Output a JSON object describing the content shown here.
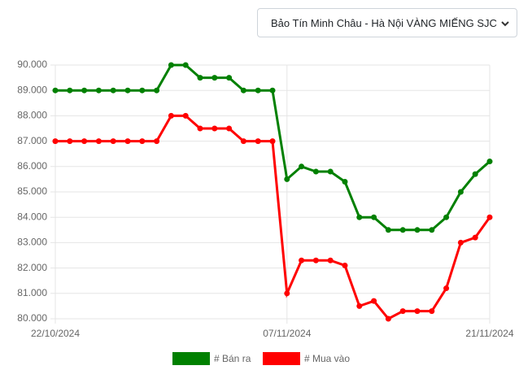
{
  "dropdown": {
    "selected": "Bảo Tín Minh Châu - Hà Nội VÀNG MIẾNG SJC"
  },
  "chart_data": {
    "type": "line",
    "categories": [
      "22/10/2024",
      null,
      null,
      null,
      null,
      null,
      null,
      null,
      null,
      null,
      null,
      null,
      null,
      null,
      null,
      null,
      "07/11/2024",
      null,
      null,
      null,
      null,
      null,
      null,
      null,
      null,
      null,
      null,
      null,
      null,
      null,
      "21/11/2024"
    ],
    "series": [
      {
        "name": "# Bán ra",
        "color": "#008000",
        "values": [
          89000,
          89000,
          89000,
          89000,
          89000,
          89000,
          89000,
          89000,
          90000,
          90000,
          89500,
          89500,
          89500,
          89000,
          89000,
          89000,
          85500,
          86000,
          85800,
          85800,
          85400,
          84000,
          84000,
          83500,
          83500,
          83500,
          83500,
          84000,
          85000,
          85700,
          86200
        ]
      },
      {
        "name": "# Mua vào",
        "color": "#ff0000",
        "values": [
          87000,
          87000,
          87000,
          87000,
          87000,
          87000,
          87000,
          87000,
          88000,
          88000,
          87500,
          87500,
          87500,
          87000,
          87000,
          87000,
          81000,
          82300,
          82300,
          82300,
          82100,
          80500,
          80700,
          80000,
          80300,
          80300,
          80300,
          81200,
          83000,
          83200,
          84000
        ]
      }
    ],
    "ylim": [
      80000,
      90000
    ],
    "yticks": [
      {
        "value": 80000,
        "label": "80.000"
      },
      {
        "value": 81000,
        "label": "81.000"
      },
      {
        "value": 82000,
        "label": "82.000"
      },
      {
        "value": 83000,
        "label": "83.000"
      },
      {
        "value": 84000,
        "label": "84.000"
      },
      {
        "value": 85000,
        "label": "85.000"
      },
      {
        "value": 86000,
        "label": "86.000"
      },
      {
        "value": 87000,
        "label": "87.000"
      },
      {
        "value": 88000,
        "label": "88.000"
      },
      {
        "value": 89000,
        "label": "89.000"
      },
      {
        "value": 90000,
        "label": "90.000"
      }
    ],
    "grid": true,
    "legend": "bottom"
  }
}
